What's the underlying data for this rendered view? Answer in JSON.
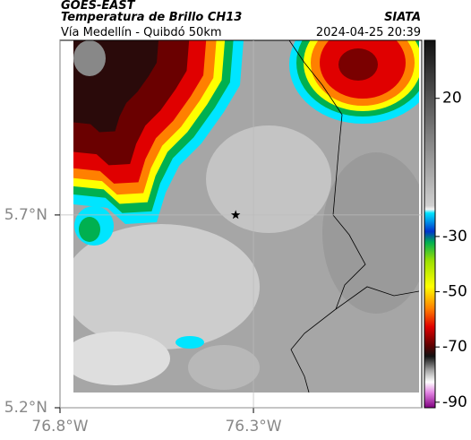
{
  "header": {
    "title": "GOES-EAST",
    "subtitle": "Temperatura de Brillo CH13",
    "route": "Vía Medellín - Quibdó 50km",
    "source": "SIATA",
    "timestamp": "2024-04-25 20:39"
  },
  "map": {
    "xlim": [
      -76.8,
      -75.865
    ],
    "ylim": [
      5.2,
      6.153
    ],
    "xticks": [
      {
        "value": -76.8,
        "label": "76.8°W"
      },
      {
        "value": -76.3,
        "label": "76.3°W"
      }
    ],
    "yticks": [
      {
        "value": 5.2,
        "label": "5.2°N"
      },
      {
        "value": 5.7,
        "label": "5.7°N"
      }
    ],
    "marker": {
      "lon": -76.346,
      "lat": 5.7
    },
    "colorbar": {
      "lim": [
        -92,
        41
      ],
      "ticks": [
        20,
        -30,
        -50,
        -70,
        -90
      ]
    }
  }
}
